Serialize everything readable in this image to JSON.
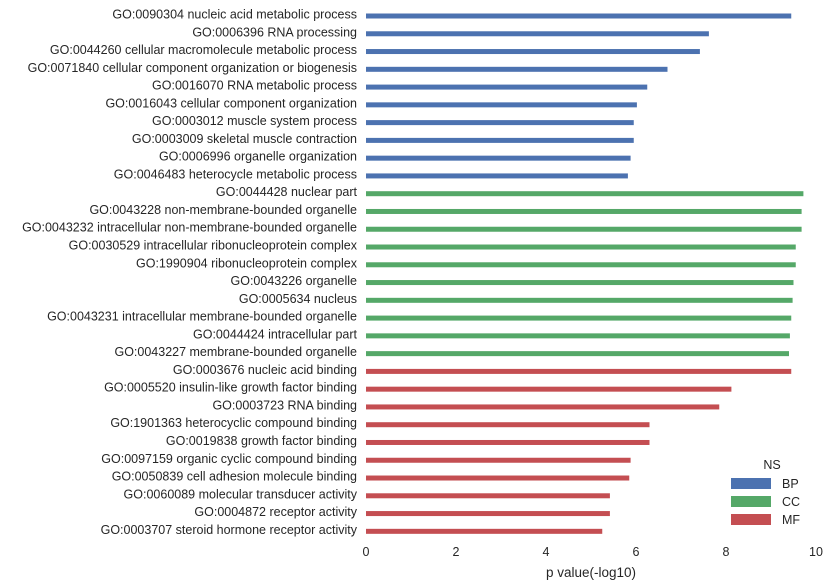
{
  "chart_data": {
    "type": "bar",
    "orientation": "horizontal",
    "xlabel": "p value(-log10)",
    "ylabel": "",
    "xlim": [
      0,
      10
    ],
    "xticks": [
      0,
      2,
      4,
      6,
      8,
      10
    ],
    "grid": false,
    "legend": {
      "title": "NS",
      "placement": "lower-right",
      "entries": [
        {
          "name": "BP",
          "color": "#4c72b0"
        },
        {
          "name": "CC",
          "color": "#55a868"
        },
        {
          "name": "MF",
          "color": "#c44e52"
        }
      ]
    },
    "categories": [
      {
        "label": "GO:0090304 nucleic acid metabolic process",
        "value": 9.45,
        "ns": "BP"
      },
      {
        "label": "GO:0006396 RNA processing",
        "value": 7.62,
        "ns": "BP"
      },
      {
        "label": "GO:0044260 cellular macromolecule metabolic process",
        "value": 7.42,
        "ns": "BP"
      },
      {
        "label": "GO:0071840 cellular component organization or biogenesis",
        "value": 6.7,
        "ns": "BP"
      },
      {
        "label": "GO:0016070 RNA metabolic process",
        "value": 6.25,
        "ns": "BP"
      },
      {
        "label": "GO:0016043 cellular component organization",
        "value": 6.02,
        "ns": "BP"
      },
      {
        "label": "GO:0003012 muscle system process",
        "value": 5.95,
        "ns": "BP"
      },
      {
        "label": "GO:0003009 skeletal muscle contraction",
        "value": 5.95,
        "ns": "BP"
      },
      {
        "label": "GO:0006996 organelle organization",
        "value": 5.88,
        "ns": "BP"
      },
      {
        "label": "GO:0046483 heterocycle metabolic process",
        "value": 5.82,
        "ns": "BP"
      },
      {
        "label": "GO:0044428 nuclear part",
        "value": 9.72,
        "ns": "CC"
      },
      {
        "label": "GO:0043228 non-membrane-bounded organelle",
        "value": 9.68,
        "ns": "CC"
      },
      {
        "label": "GO:0043232 intracellular non-membrane-bounded organelle",
        "value": 9.68,
        "ns": "CC"
      },
      {
        "label": "GO:0030529 intracellular ribonucleoprotein complex",
        "value": 9.55,
        "ns": "CC"
      },
      {
        "label": "GO:1990904 ribonucleoprotein complex",
        "value": 9.55,
        "ns": "CC"
      },
      {
        "label": "GO:0043226 organelle",
        "value": 9.5,
        "ns": "CC"
      },
      {
        "label": "GO:0005634 nucleus",
        "value": 9.48,
        "ns": "CC"
      },
      {
        "label": "GO:0043231 intracellular membrane-bounded organelle",
        "value": 9.45,
        "ns": "CC"
      },
      {
        "label": "GO:0044424 intracellular part",
        "value": 9.42,
        "ns": "CC"
      },
      {
        "label": "GO:0043227 membrane-bounded organelle",
        "value": 9.4,
        "ns": "CC"
      },
      {
        "label": "GO:0003676 nucleic acid binding",
        "value": 9.45,
        "ns": "MF"
      },
      {
        "label": "GO:0005520 insulin-like growth factor binding",
        "value": 8.12,
        "ns": "MF"
      },
      {
        "label": "GO:0003723 RNA binding",
        "value": 7.85,
        "ns": "MF"
      },
      {
        "label": "GO:1901363 heterocyclic compound binding",
        "value": 6.3,
        "ns": "MF"
      },
      {
        "label": "GO:0019838 growth factor binding",
        "value": 6.3,
        "ns": "MF"
      },
      {
        "label": "GO:0097159 organic cyclic compound binding",
        "value": 5.88,
        "ns": "MF"
      },
      {
        "label": "GO:0050839 cell adhesion molecule binding",
        "value": 5.85,
        "ns": "MF"
      },
      {
        "label": "GO:0060089 molecular transducer activity",
        "value": 5.42,
        "ns": "MF"
      },
      {
        "label": "GO:0004872 receptor activity",
        "value": 5.42,
        "ns": "MF"
      },
      {
        "label": "GO:0003707 steroid hormone receptor activity",
        "value": 5.25,
        "ns": "MF"
      }
    ]
  }
}
